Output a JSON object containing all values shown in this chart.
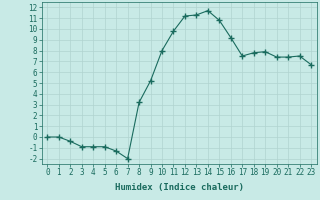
{
  "x": [
    0,
    1,
    2,
    3,
    4,
    5,
    6,
    7,
    8,
    9,
    10,
    11,
    12,
    13,
    14,
    15,
    16,
    17,
    18,
    19,
    20,
    21,
    22,
    23
  ],
  "y": [
    0.0,
    0.0,
    -0.4,
    -0.9,
    -0.9,
    -0.9,
    -1.3,
    -2.0,
    3.2,
    5.2,
    8.0,
    9.8,
    11.2,
    11.3,
    11.7,
    10.8,
    9.2,
    7.5,
    7.8,
    7.9,
    7.4,
    7.4,
    7.5,
    6.7
  ],
  "line_color": "#1a6b5e",
  "marker": "+",
  "marker_size": 4,
  "bg_color": "#c8eae6",
  "grid_color": "#b0d4d0",
  "xlabel": "Humidex (Indice chaleur)",
  "xlim": [
    -0.5,
    23.5
  ],
  "ylim": [
    -2.5,
    12.5
  ],
  "yticks": [
    -2,
    -1,
    0,
    1,
    2,
    3,
    4,
    5,
    6,
    7,
    8,
    9,
    10,
    11,
    12
  ],
  "xticks": [
    0,
    1,
    2,
    3,
    4,
    5,
    6,
    7,
    8,
    9,
    10,
    11,
    12,
    13,
    14,
    15,
    16,
    17,
    18,
    19,
    20,
    21,
    22,
    23
  ],
  "xlabel_fontsize": 6.5,
  "tick_fontsize": 5.5
}
